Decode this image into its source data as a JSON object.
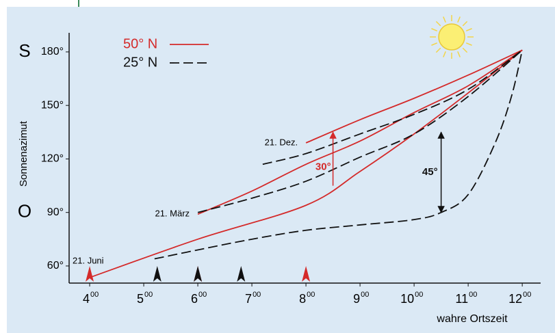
{
  "chart_data": {
    "type": "line",
    "y_label": "Sonnenazimut",
    "x_label": "wahre Ortszeit",
    "xtick_minutes": "00",
    "xlim": [
      3.62,
      12.34
    ],
    "ylim": [
      50.4,
      190.7
    ],
    "xticks": [
      4,
      5,
      6,
      7,
      8,
      9,
      10,
      11,
      12
    ],
    "yticks": [
      {
        "value": 60,
        "label": "60°"
      },
      {
        "value": 90,
        "label": "90°"
      },
      {
        "value": 120,
        "label": "120°"
      },
      {
        "value": 150,
        "label": "150°"
      },
      {
        "value": 180,
        "label": "180°"
      }
    ],
    "side_labels": [
      {
        "value": 180,
        "label": "S"
      },
      {
        "value": 90,
        "label": "O"
      }
    ],
    "dates": [
      "21. Juni",
      "21. März",
      "21. Dez."
    ],
    "series": [
      {
        "name": "50° N",
        "color": "#d42a2a",
        "dash": false,
        "curves": [
          {
            "x": [
              4,
              6,
              8,
              9,
              10,
              11,
              12
            ],
            "values": [
              53.5,
              75,
              94,
              113,
              134,
              157,
              181
            ]
          },
          {
            "x": [
              6,
              7,
              8,
              9,
              10,
              11,
              12
            ],
            "values": [
              89,
              102,
              117,
              130,
              146,
              161,
              181
            ]
          },
          {
            "x": [
              8,
              9,
              10,
              11,
              12
            ],
            "values": [
              129,
              142,
              154,
              167,
              181
            ]
          }
        ]
      },
      {
        "name": "25° N",
        "color": "#111111",
        "dash": true,
        "curves": [
          {
            "x": [
              5.2,
              6,
              7,
              8,
              9,
              10,
              10.5,
              11,
              11.5,
              11.8,
              12
            ],
            "values": [
              64,
              69,
              75,
              80,
              83,
              86,
              90,
              100,
              129,
              155,
              181
            ]
          },
          {
            "x": [
              6,
              7,
              8,
              9,
              10,
              11,
              12
            ],
            "values": [
              90,
              98,
              107.5,
              121,
              134,
              155,
              181
            ]
          },
          {
            "x": [
              7.2,
              8,
              9,
              10,
              11,
              12
            ],
            "values": [
              117,
              123,
              134,
              145,
              159,
              181
            ]
          }
        ]
      }
    ],
    "sunrise_markers": [
      {
        "x": 4,
        "color": "#d42a2a"
      },
      {
        "x": 6,
        "color": "#d42a2a"
      },
      {
        "x": 8,
        "color": "#d42a2a"
      },
      {
        "x": 5.25,
        "color": "#111111"
      },
      {
        "x": 6,
        "color": "#111111"
      },
      {
        "x": 6.8,
        "color": "#111111"
      }
    ],
    "annotations": [
      {
        "text": "30°",
        "x": 8.5,
        "from": 105,
        "to": 135,
        "color": "#d42a2a"
      },
      {
        "text": "45°",
        "x": 10.5,
        "from": 90,
        "to": 135,
        "color": "#111111"
      }
    ]
  }
}
